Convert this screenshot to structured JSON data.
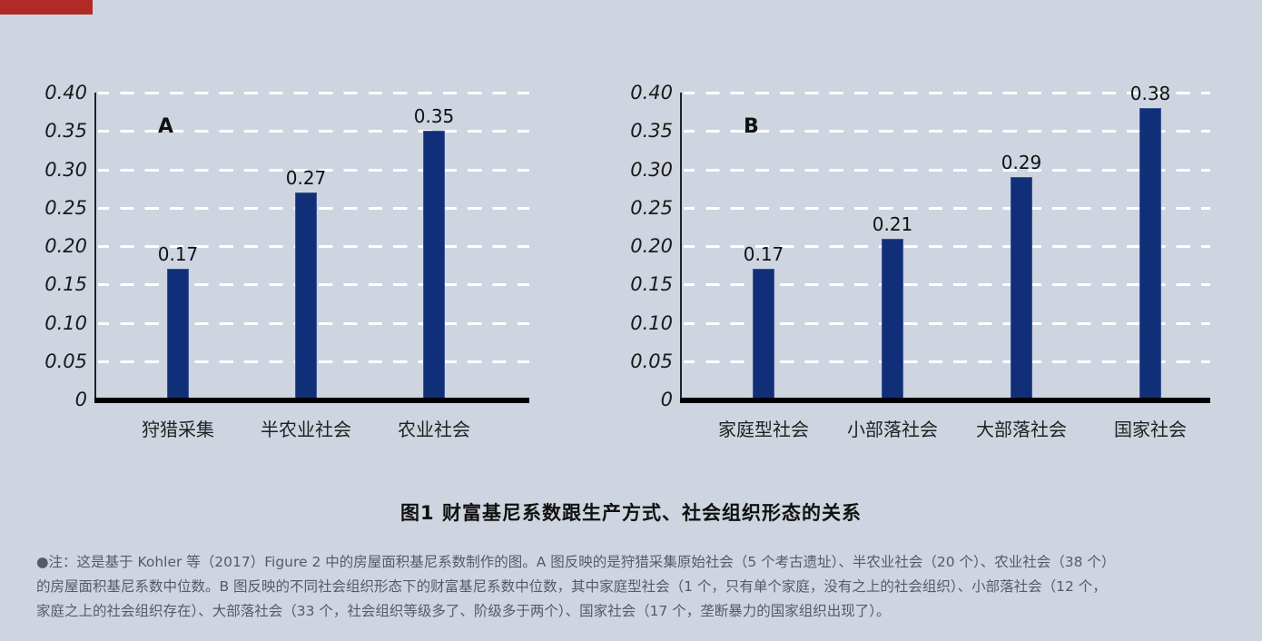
{
  "decor": {
    "corner_color": "#b02a26"
  },
  "chart_data": [
    {
      "type": "bar",
      "panel": "A",
      "categories": [
        "狩猎采集",
        "半农业社会",
        "农业社会"
      ],
      "values": [
        0.17,
        0.27,
        0.35
      ],
      "value_labels": [
        "0.17",
        "0.27",
        "0.35"
      ],
      "yticks": [
        "0",
        "0.05",
        "0.10",
        "0.15",
        "0.20",
        "0.25",
        "0.30",
        "0.35",
        "0.40"
      ],
      "ylim": [
        0,
        0.4
      ],
      "grid": "dashed-horizontal",
      "bar_color": "#112e78",
      "xlabel": "",
      "ylabel": ""
    },
    {
      "type": "bar",
      "panel": "B",
      "categories": [
        "家庭型社会",
        "小部落社会",
        "大部落社会",
        "国家社会"
      ],
      "values": [
        0.17,
        0.21,
        0.29,
        0.38
      ],
      "value_labels": [
        "0.17",
        "0.21",
        "0.29",
        "0.38"
      ],
      "yticks": [
        "0",
        "0.05",
        "0.10",
        "0.15",
        "0.20",
        "0.25",
        "0.30",
        "0.35",
        "0.40"
      ],
      "ylim": [
        0,
        0.4
      ],
      "grid": "dashed-horizontal",
      "bar_color": "#112e78",
      "xlabel": "",
      "ylabel": ""
    }
  ],
  "figure": {
    "title": "图1 财富基尼系数跟生产方式、社会组织形态的关系",
    "note_lines": [
      "●注：这是基于 Kohler 等（2017）Figure 2 中的房屋面积基尼系数制作的图。A 图反映的是狩猎采集原始社会（5 个考古遗址）、半农业社会（20 个）、农业社会（38 个）",
      "的房屋面积基尼系数中位数。B 图反映的不同社会组织形态下的财富基尼系数中位数，其中家庭型社会（1 个，只有单个家庭，没有之上的社会组织）、小部落社会（12 个，",
      "家庭之上的社会组织存在）、大部落社会（33 个，社会组织等级多了、阶级多于两个）、国家社会（17 个，垄断暴力的国家组织出现了）。"
    ]
  }
}
